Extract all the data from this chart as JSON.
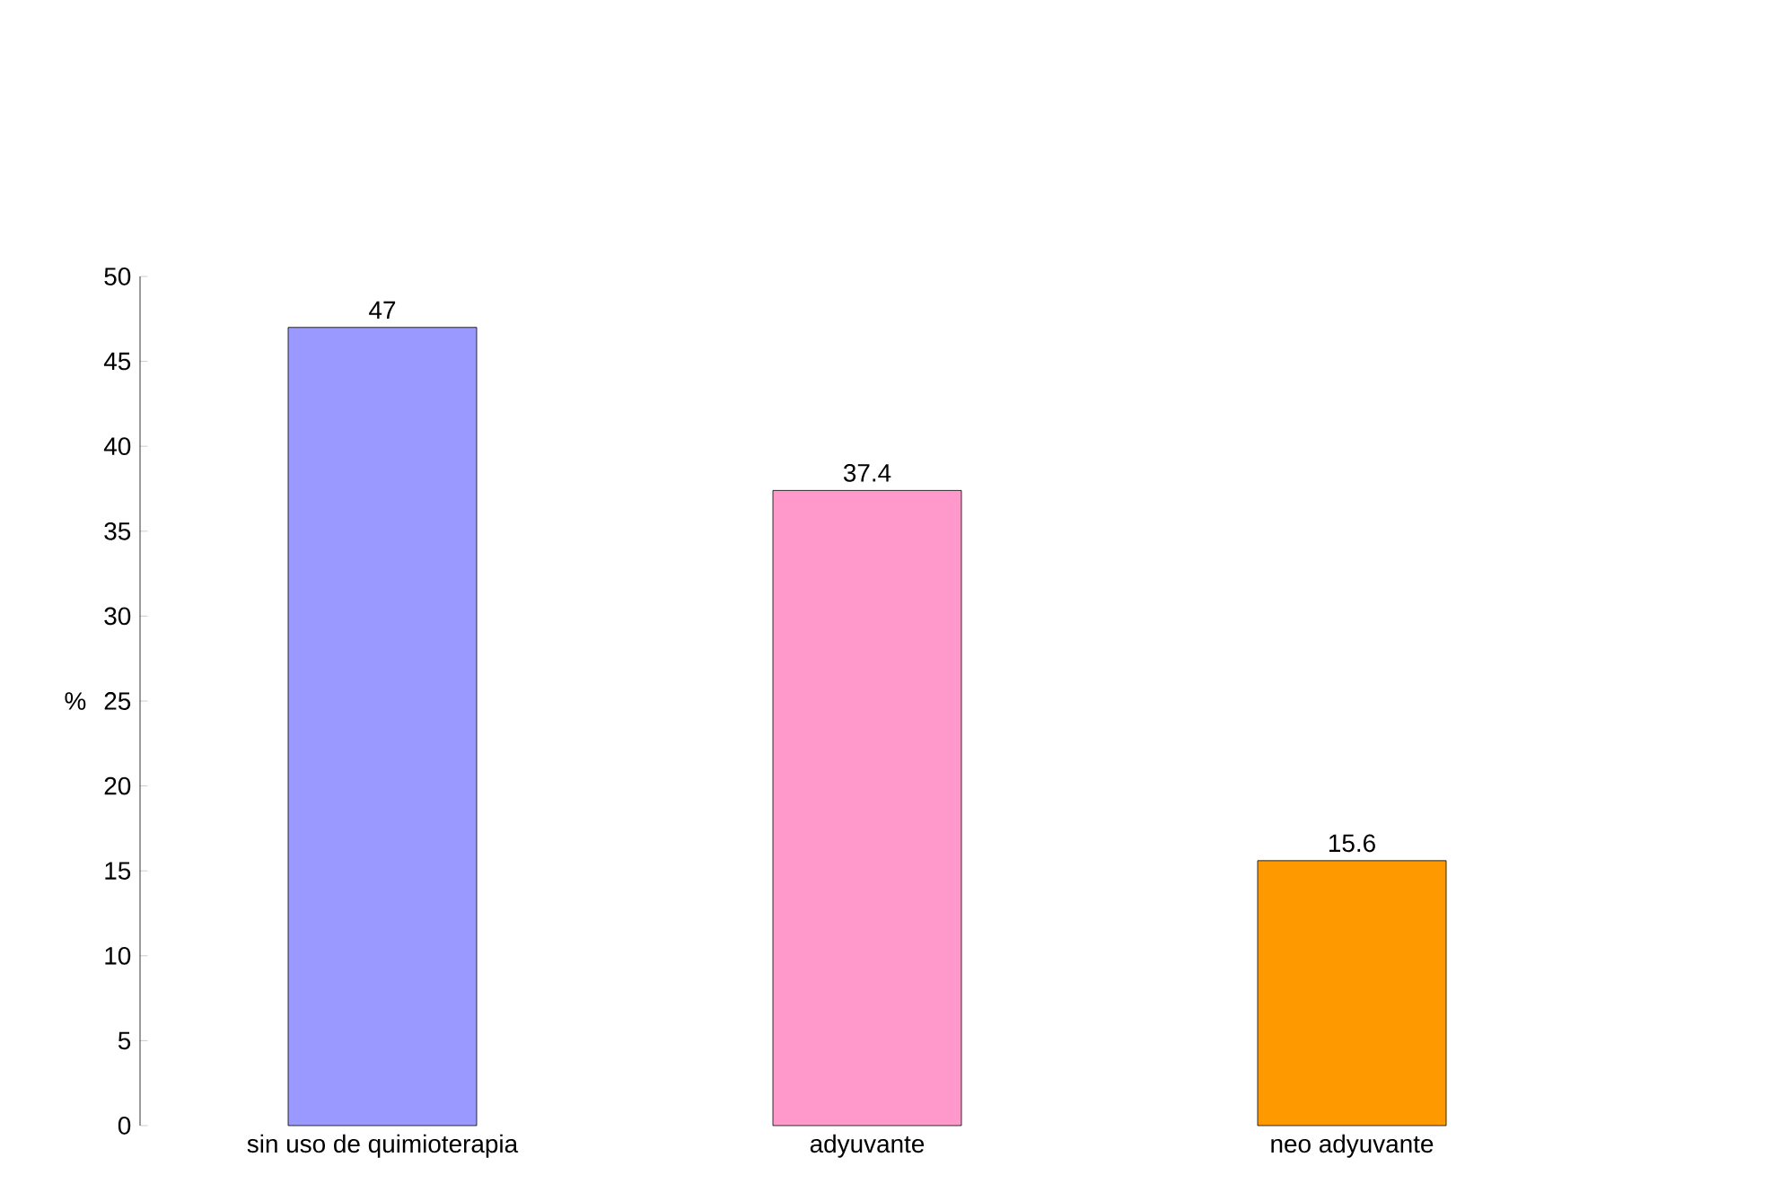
{
  "chart_data": {
    "type": "bar",
    "ylabel": "%",
    "categories": [
      "sin uso de quimioterapia",
      "adyuvante",
      "neo adyuvante"
    ],
    "values": [
      47,
      37.4,
      15.6
    ],
    "colors": [
      "#9999ff",
      "#ff99cc",
      "#ff9900"
    ],
    "ylim": [
      0,
      50
    ],
    "yticks": [
      0,
      5,
      10,
      15,
      20,
      25,
      30,
      35,
      40,
      45,
      50
    ],
    "data_labels": true,
    "grid": false
  }
}
